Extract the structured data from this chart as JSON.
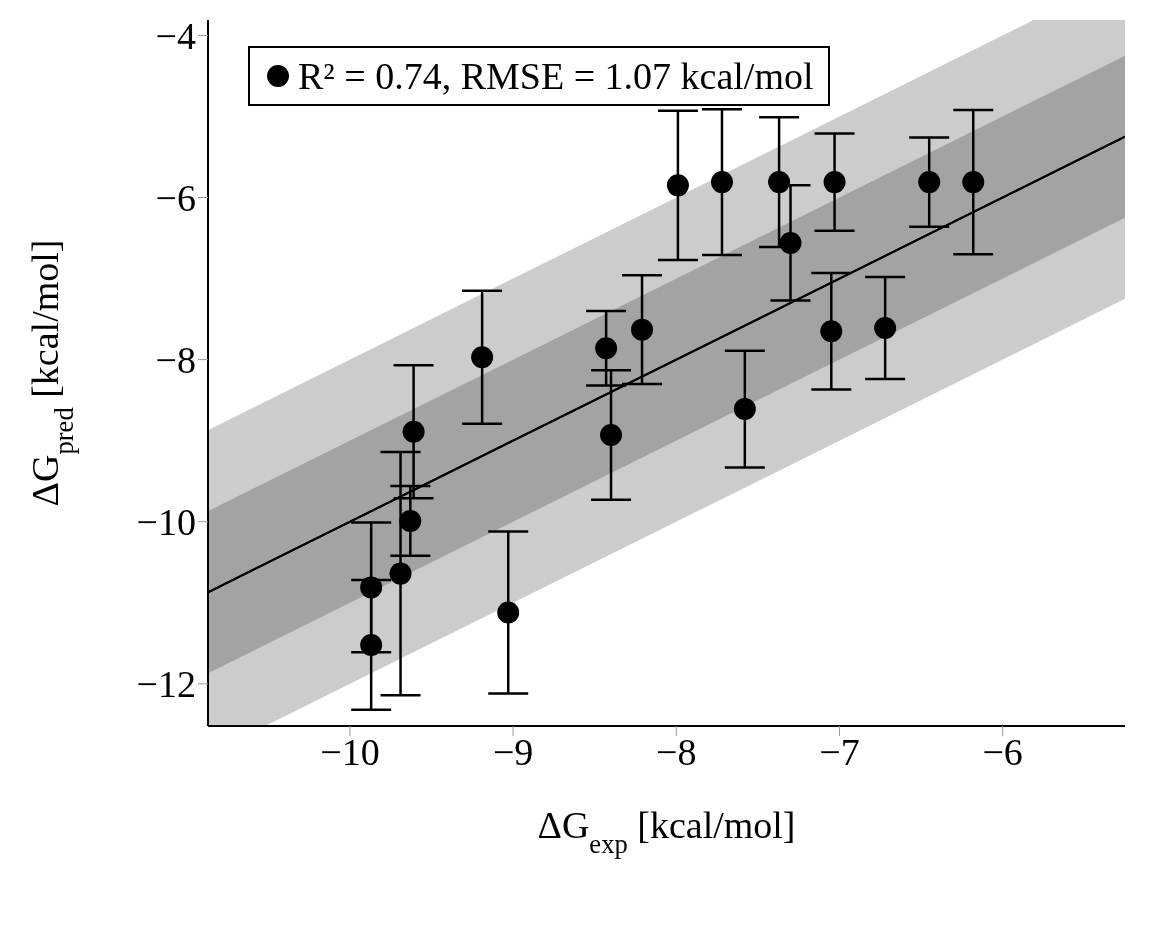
{
  "chart_data": {
    "type": "scatter",
    "xlabel": "ΔG$_{exp}$ [kcal/mol]",
    "ylabel": "ΔG$_{pred}$ [kcal/mol]",
    "xlim": [
      -10.87,
      -5.25
    ],
    "ylim": [
      -12.52,
      -3.81
    ],
    "xticks": [
      -10,
      -9,
      -8,
      -7,
      -6
    ],
    "yticks": [
      -12,
      -10,
      -8,
      -6,
      -4
    ],
    "grid": false,
    "legend": "top left",
    "marker": "circle",
    "series": [
      {
        "type": "line",
        "marker": "none",
        "color": "#000000",
        "x": [
          -10.87,
          -10.52,
          -5.81,
          -5.25
        ],
        "values": [
          -10.87,
          -10.52,
          -5.81,
          -5.25
        ],
        "lower": [
          -12.52,
          -12.52,
          -7.81,
          -7.25
        ],
        "upper": [
          -8.87,
          -8.52,
          -3.81,
          -3.81
        ]
      },
      {
        "type": "line",
        "marker": "none",
        "color": "#000000",
        "x": [
          -10.87,
          -5.25
        ],
        "values": [
          -10.87,
          -5.25
        ],
        "lower": [
          -11.87,
          -6.25
        ],
        "upper": [
          -9.87,
          -4.25
        ]
      },
      {
        "name": "R² = 0.74, RMSE = 1.07 kcal/mol",
        "color": "#000000",
        "x": [
          -9.87,
          -9.87,
          -9.69,
          -9.63,
          -9.61,
          -9.03,
          -9.19,
          -8.43,
          -8.21,
          -8.4,
          -7.99,
          -7.72,
          -7.37,
          -7.3,
          -7.03,
          -6.45,
          -6.18,
          -7.58,
          -7.05,
          -6.72
        ],
        "values": [
          -11.52,
          -10.81,
          -10.64,
          -9.99,
          -8.89,
          -11.12,
          -7.97,
          -7.86,
          -7.63,
          -8.93,
          -5.85,
          -5.81,
          -5.81,
          -6.56,
          -5.81,
          -5.81,
          -5.81,
          -8.61,
          -7.65,
          -7.61
        ],
        "errors": [
          0.8,
          0.8,
          1.5,
          0.43,
          0.82,
          1.0,
          0.82,
          0.46,
          0.67,
          0.8,
          0.92,
          0.9,
          0.8,
          0.71,
          0.6,
          0.55,
          0.89,
          0.72,
          0.72,
          0.63
        ]
      }
    ]
  }
}
